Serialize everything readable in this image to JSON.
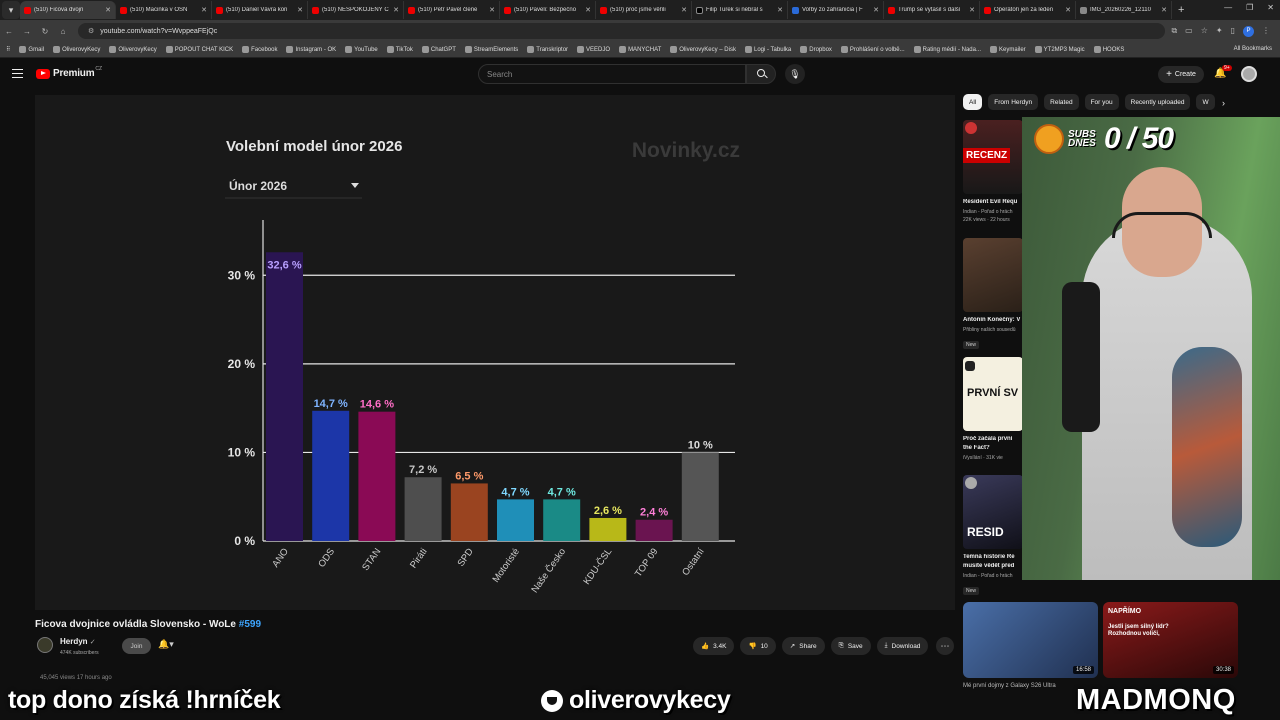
{
  "browser": {
    "tabs": [
      {
        "label": "(510) Ficova dvojn",
        "active": true
      },
      {
        "label": "(510) Macinka v OSN"
      },
      {
        "label": "(510) Daniel Vávra kon"
      },
      {
        "label": "(510) NESPOKOJENÝ Č"
      },
      {
        "label": "(510) Petr Pavel člene"
      },
      {
        "label": "(510) Paveli: Bezpečno"
      },
      {
        "label": "(510) proč jsme věřili"
      },
      {
        "label": "Filip Turek si nebral s"
      },
      {
        "label": "Voľby zo zahraničia | F"
      },
      {
        "label": "Trump se vytasil s další"
      },
      {
        "label": "Operátoři jen za leden"
      },
      {
        "label": "IMG_20260226_12110"
      }
    ],
    "url": "youtube.com/watch?v=WvppeaFEjQc",
    "bookmarks": [
      "Gmail",
      "OliverovyKecy",
      "OliverovyKecy",
      "POPOUT CHAT KICK",
      "Facebook",
      "Instagram - OK",
      "YouTube",
      "TikTok",
      "ChatGPT",
      "StreamElements",
      "Transkriptor",
      "VEEDJO",
      "MANYCHAT",
      "OliverovyKecy – Disk",
      "Logi - Tabulka",
      "Dropbox",
      "Prohlášení o volbě...",
      "Rating médií - Nada...",
      "Keymailer",
      "YT2MP3 Magic",
      "HOOKS"
    ],
    "all_bookmarks": "All Bookmarks",
    "profile_initial": "P"
  },
  "youtube": {
    "logo_text": "Premium",
    "logo_region": "CZ",
    "search_placeholder": "Search",
    "create_label": "Create",
    "notif_badge": "9+",
    "chips": [
      "All",
      "From Herdyn",
      "Related",
      "For you",
      "Recently uploaded",
      "W"
    ]
  },
  "chart_data": {
    "type": "bar",
    "title": "Volební model únor 2026",
    "source_logo": "Novinky.cz",
    "dropdown_value": "Únor 2026",
    "categories": [
      "ANO",
      "ODS",
      "STAN",
      "Piráti",
      "SPD",
      "Motoristé",
      "Naše Česko",
      "KDU-ČSL",
      "TOP 09",
      "Ostatní"
    ],
    "values": [
      32.6,
      14.7,
      14.6,
      7.2,
      6.5,
      4.7,
      4.7,
      2.6,
      2.4,
      10
    ],
    "value_labels": [
      "32,6 %",
      "14,7 %",
      "14,6 %",
      "7,2 %",
      "6,5 %",
      "4,7 %",
      "4,7 %",
      "2,6 %",
      "2,4 %",
      "10 %"
    ],
    "colors": [
      "#2a1552",
      "#1c36a8",
      "#8a0a55",
      "#4e4e4e",
      "#9a4420",
      "#1f8fb8",
      "#1a8a86",
      "#b8b818",
      "#6a1450",
      "#555555"
    ],
    "label_colors": [
      "#b9a0ff",
      "#7fb4ff",
      "#ff6ec7",
      "#c8c8c8",
      "#ff9a6a",
      "#7fd8ff",
      "#6ee8e0",
      "#e8e860",
      "#ff7fd8",
      "#dddddd"
    ],
    "yticks": [
      0,
      10,
      20,
      30
    ],
    "ytick_labels": [
      "0 %",
      "10 %",
      "20 %",
      "30 %"
    ],
    "ylim": [
      0,
      35
    ],
    "grid": true
  },
  "video": {
    "title": "Ficova dvojnice ovládla Slovensko - WoLe",
    "hashtag": "#599",
    "channel": "Herdyn",
    "subscribers": "474K subscribers",
    "join_label": "Join",
    "likes": "3.4K",
    "dislikes": "10",
    "share_label": "Share",
    "save_label": "Save",
    "download_label": "Download",
    "views": "45,045 views  17 hours ago"
  },
  "recommendations": [
    {
      "thumb_text": "RECENZ",
      "title": "Resident Evil Requ",
      "channel": "Indian - Pořad o hrách",
      "meta": "22K views · 22 hours"
    },
    {
      "thumb_text": "",
      "title": "Antonín Konečný: V",
      "channel": "Přibliny našich sousedů",
      "meta": "",
      "new": "New"
    },
    {
      "thumb_text": "PRVNÍ SV",
      "title": "Proč začala první",
      "channel": "the Fact?",
      "meta": "iVysílání · 31K vie"
    },
    {
      "thumb_text": "RESID",
      "title": "Temná historie Re",
      "channel": "musíte vědět před",
      "meta": "Indian - Pořad o hrách",
      "new": "New"
    }
  ],
  "rec_bottom": [
    {
      "duration": "16:58",
      "caption": "Mé první dojmy z Galaxy S26 Ultra"
    },
    {
      "duration": "30:38",
      "caption": "Jestli jsem silný lídr? Rozhodnou voliči,",
      "brand": "NAPŘÍMO"
    }
  ],
  "stream": {
    "sub_goal_label": "SUBS DNES",
    "sub_goal_count": "0 / 50",
    "overlay_left": "top dono získá !hrníček",
    "overlay_mid": "oliverovykecy",
    "overlay_right": "MADMONQ"
  }
}
